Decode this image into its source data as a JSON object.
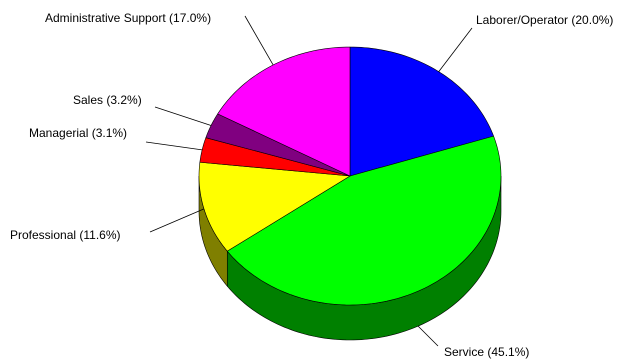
{
  "chart_data": {
    "type": "pie",
    "style": "3d",
    "title": "",
    "slices": [
      {
        "name": "Laborer/Operator",
        "value": 20.0,
        "label": "Laborer/Operator (20.0%)",
        "color": "#0000ff",
        "side_color": "#00007f"
      },
      {
        "name": "Service",
        "value": 45.1,
        "label": "Service (45.1%)",
        "color": "#00ff00",
        "side_color": "#008000"
      },
      {
        "name": "Professional",
        "value": 11.6,
        "label": "Professional (11.6%)",
        "color": "#ffff00",
        "side_color": "#7f7f00"
      },
      {
        "name": "Managerial",
        "value": 3.1,
        "label": "Managerial (3.1%)",
        "color": "#ff0000",
        "side_color": "#800000"
      },
      {
        "name": "Sales",
        "value": 3.2,
        "label": "Sales (3.2%)",
        "color": "#800080",
        "side_color": "#400040"
      },
      {
        "name": "Administrative Support",
        "value": 17.0,
        "label": "Administrative Support (17.0%)",
        "color": "#ff00ff",
        "side_color": "#800080"
      }
    ]
  }
}
